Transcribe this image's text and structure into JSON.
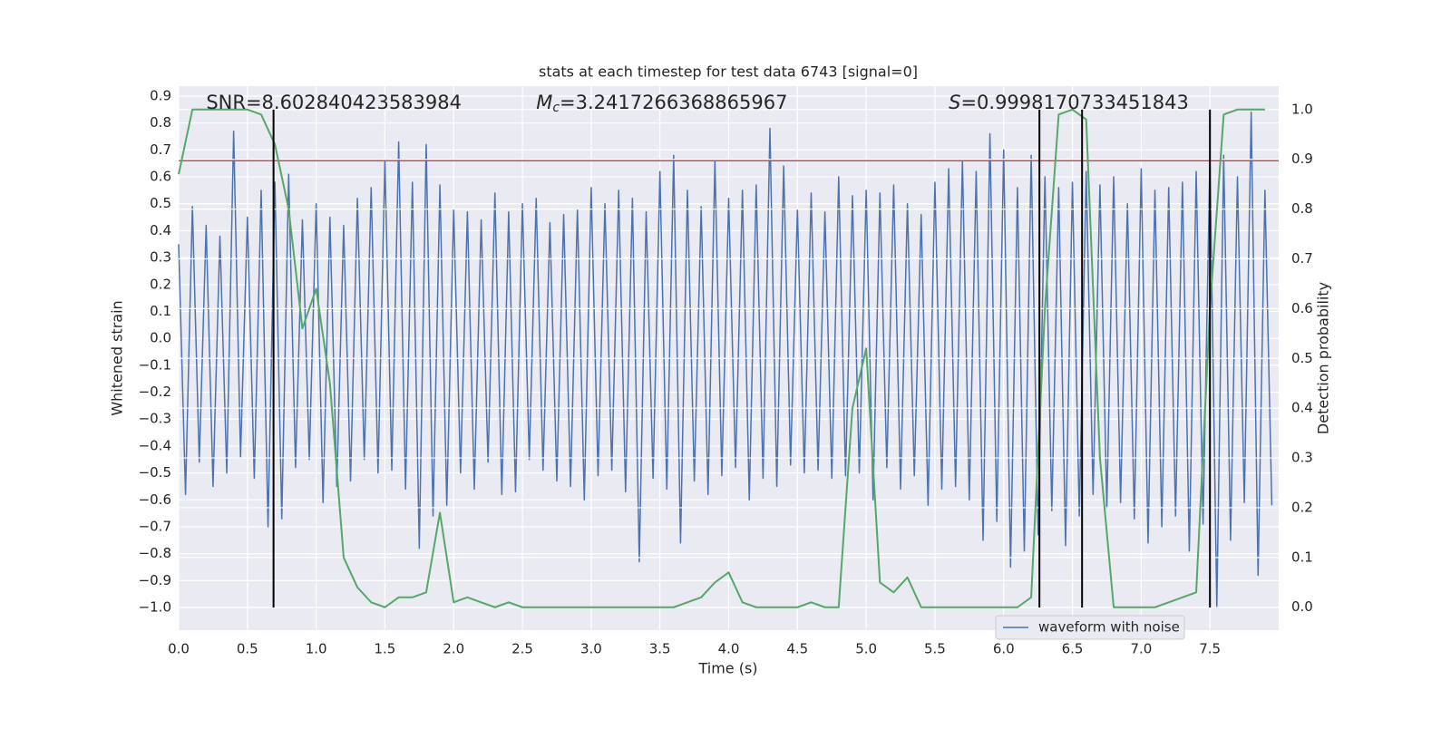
{
  "chart_data": {
    "type": "line",
    "title": "stats at each timestep for test data 6743 [signal=0]",
    "xlabel": "Time (s)",
    "ylabel": "Whitened strain",
    "y2label": "Detection probability",
    "xlim": [
      0,
      8
    ],
    "ylim": [
      -1.084,
      0.937
    ],
    "y2lim": [
      -0.046,
      1.047
    ],
    "xticks": [
      {
        "value": 0,
        "label": "0.0"
      },
      0.5,
      {
        "value": 1,
        "label": "1.0"
      },
      1.5,
      {
        "value": 2,
        "label": "2.0"
      },
      2.5,
      {
        "value": 3,
        "label": "3.0"
      },
      3.5,
      {
        "value": 4,
        "label": "4.0"
      },
      4.5,
      {
        "value": 5,
        "label": "5.0"
      },
      5.5,
      {
        "value": 6,
        "label": "6.0"
      },
      6.5,
      {
        "value": 7,
        "label": "7.0"
      },
      7.5
    ],
    "yticks": [
      {
        "value": -1.0,
        "label": "−1.0"
      },
      {
        "value": -0.9,
        "label": "−0.9"
      },
      {
        "value": -0.8,
        "label": "−0.8"
      },
      {
        "value": -0.7,
        "label": "−0.7"
      },
      {
        "value": -0.6,
        "label": "−0.6"
      },
      {
        "value": -0.5,
        "label": "−0.5"
      },
      {
        "value": -0.4,
        "label": "−0.4"
      },
      {
        "value": -0.3,
        "label": "−0.3"
      },
      {
        "value": -0.2,
        "label": "−0.2"
      },
      {
        "value": -0.1,
        "label": "−0.1"
      },
      {
        "value": 0,
        "label": "0.0"
      },
      0.1,
      0.2,
      0.3,
      0.4,
      0.5,
      0.6,
      0.7,
      0.8,
      0.9
    ],
    "y2ticks": [
      {
        "value": 0,
        "label": "0.0"
      },
      0.1,
      0.2,
      0.3,
      0.4,
      0.5,
      0.6,
      0.7,
      0.8,
      0.9,
      {
        "value": 1,
        "label": "1.0"
      }
    ],
    "grid": true,
    "legend": "lower right",
    "series": [
      {
        "name": "waveform with noise",
        "color": "#4c72b0",
        "axis": "y",
        "x": [
          0,
          0.05,
          0.1,
          0.15,
          0.2,
          0.25,
          0.3,
          0.35,
          0.4,
          0.45,
          0.5,
          0.55,
          0.6,
          0.65,
          0.7,
          0.75,
          0.8,
          0.85,
          0.9,
          0.95,
          1,
          1.05,
          1.1,
          1.15,
          1.2,
          1.25,
          1.3,
          1.35,
          1.4,
          1.45,
          1.5,
          1.55,
          1.6,
          1.65,
          1.7,
          1.75,
          1.8,
          1.85,
          1.9,
          1.95,
          2,
          2.05,
          2.1,
          2.15,
          2.2,
          2.25,
          2.3,
          2.35,
          2.4,
          2.45,
          2.5,
          2.55,
          2.6,
          2.65,
          2.7,
          2.75,
          2.8,
          2.85,
          2.9,
          2.95,
          3,
          3.05,
          3.1,
          3.15,
          3.2,
          3.25,
          3.3,
          3.35,
          3.4,
          3.45,
          3.5,
          3.55,
          3.6,
          3.65,
          3.7,
          3.75,
          3.8,
          3.85,
          3.9,
          3.95,
          4,
          4.05,
          4.1,
          4.15,
          4.2,
          4.25,
          4.3,
          4.35,
          4.4,
          4.45,
          4.5,
          4.55,
          4.6,
          4.65,
          4.7,
          4.75,
          4.8,
          4.85,
          4.9,
          4.95,
          5,
          5.05,
          5.1,
          5.15,
          5.2,
          5.25,
          5.3,
          5.35,
          5.4,
          5.45,
          5.5,
          5.55,
          5.6,
          5.65,
          5.7,
          5.75,
          5.8,
          5.85,
          5.9,
          5.95,
          6,
          6.05,
          6.1,
          6.15,
          6.2,
          6.25,
          6.3,
          6.35,
          6.4,
          6.45,
          6.5,
          6.55,
          6.6,
          6.65,
          6.7,
          6.75,
          6.8,
          6.85,
          6.9,
          6.95,
          7,
          7.05,
          7.1,
          7.15,
          7.2,
          7.25,
          7.3,
          7.35,
          7.4,
          7.45,
          7.5,
          7.55,
          7.6,
          7.65,
          7.7,
          7.75,
          7.8,
          7.85,
          7.9,
          7.95
        ],
        "values": [
          0.35,
          -0.58,
          0.49,
          -0.46,
          0.42,
          -0.55,
          0.38,
          -0.5,
          0.77,
          -0.44,
          0.45,
          -0.52,
          0.55,
          -0.7,
          0.58,
          -0.67,
          0.61,
          -0.48,
          0.44,
          -0.45,
          0.5,
          -0.61,
          0.45,
          -0.55,
          0.42,
          -0.53,
          0.52,
          -0.45,
          0.56,
          -0.5,
          0.66,
          -0.49,
          0.73,
          -0.56,
          0.58,
          -0.78,
          0.72,
          -0.66,
          0.57,
          -0.62,
          0.48,
          -0.5,
          0.47,
          -0.56,
          0.44,
          -0.46,
          0.54,
          -0.58,
          0.47,
          -0.57,
          0.5,
          -0.45,
          0.52,
          -0.49,
          0.43,
          -0.53,
          0.46,
          -0.55,
          0.48,
          -0.6,
          0.56,
          -0.51,
          0.5,
          -0.49,
          0.55,
          -0.57,
          0.52,
          -0.83,
          0.47,
          -0.52,
          0.62,
          -0.56,
          0.68,
          -0.76,
          0.55,
          -0.53,
          0.49,
          -0.58,
          0.66,
          -0.51,
          0.52,
          -0.48,
          0.55,
          -0.6,
          0.57,
          -0.52,
          0.78,
          -0.55,
          0.64,
          -0.47,
          0.48,
          -0.5,
          0.54,
          -0.49,
          0.47,
          -0.52,
          0.6,
          -0.51,
          0.53,
          -0.5,
          0.55,
          -0.6,
          0.54,
          -0.48,
          0.57,
          -0.56,
          0.5,
          -0.51,
          0.46,
          -0.62,
          0.58,
          -0.56,
          0.63,
          -0.55,
          0.66,
          -0.6,
          0.62,
          -0.75,
          0.76,
          -0.68,
          0.7,
          -0.85,
          0.56,
          -0.79,
          0.68,
          -0.73,
          0.6,
          -0.64,
          0.56,
          -0.77,
          0.58,
          -0.66,
          0.62,
          -0.58,
          0.57,
          -0.63,
          0.6,
          -0.61,
          0.5,
          -0.67,
          0.63,
          -0.76,
          0.55,
          -0.7,
          0.56,
          -0.66,
          0.58,
          -0.79,
          0.62,
          -0.69,
          0.67,
          -1.0,
          0.68,
          -0.75,
          0.6,
          -0.61,
          0.84,
          -0.88,
          0.55,
          -0.62
        ]
      },
      {
        "color": "#55a868",
        "axis": "y2",
        "x": [
          0,
          0.1,
          0.2,
          0.3,
          0.4,
          0.5,
          0.6,
          0.7,
          0.8,
          0.9,
          1,
          1.1,
          1.2,
          1.3,
          1.4,
          1.5,
          1.6,
          1.7,
          1.8,
          1.9,
          2,
          2.1,
          2.2,
          2.3,
          2.4,
          2.5,
          2.6,
          2.7,
          2.8,
          2.9,
          3,
          3.1,
          3.2,
          3.3,
          3.4,
          3.5,
          3.6,
          3.7,
          3.8,
          3.9,
          4,
          4.1,
          4.2,
          4.3,
          4.4,
          4.5,
          4.6,
          4.7,
          4.8,
          4.9,
          5,
          5.1,
          5.2,
          5.3,
          5.4,
          5.5,
          5.6,
          5.7,
          5.8,
          5.9,
          6,
          6.1,
          6.2,
          6.3,
          6.4,
          6.5,
          6.6,
          6.7,
          6.8,
          6.9,
          7,
          7.1,
          7.2,
          7.3,
          7.4,
          7.5,
          7.6,
          7.7,
          7.8,
          7.9
        ],
        "values": [
          0.87,
          1.0,
          1.0,
          1.0,
          1.0,
          1.0,
          0.99,
          0.93,
          0.8,
          0.56,
          0.64,
          0.45,
          0.1,
          0.04,
          0.01,
          0.0,
          0.02,
          0.02,
          0.03,
          0.19,
          0.01,
          0.02,
          0.01,
          0.0,
          0.01,
          0.0,
          0.0,
          0.0,
          0.0,
          0.0,
          0.0,
          0.0,
          0.0,
          0.0,
          0.0,
          0.0,
          0.0,
          0.01,
          0.02,
          0.05,
          0.07,
          0.01,
          0.0,
          0.0,
          0.0,
          0.0,
          0.01,
          0.0,
          0.0,
          0.4,
          0.52,
          0.05,
          0.03,
          0.06,
          0.0,
          0.0,
          0.0,
          0.0,
          0.0,
          0.0,
          0.0,
          0.0,
          0.02,
          0.6,
          0.99,
          1.0,
          0.98,
          0.3,
          0.0,
          0.0,
          0.0,
          0.0,
          0.01,
          0.02,
          0.03,
          0.6,
          0.99,
          1.0,
          1.0,
          1.0
        ]
      }
    ],
    "hline": {
      "value": 0.66,
      "color": "#c44e52"
    },
    "vlines": [
      0.69,
      6.26,
      6.57,
      7.5
    ],
    "vline_ymin": -1.0,
    "vline_ymax": 0.85,
    "annotations": [
      {
        "text": "SNR=8.602840423583984",
        "x": 0.2
      },
      {
        "symbol": "M",
        "subscript": "c",
        "text": "=3.2417266368865967",
        "x": 2.6
      },
      {
        "symbol": "S",
        "text": "=0.9998170733451843",
        "x": 5.6
      }
    ]
  }
}
